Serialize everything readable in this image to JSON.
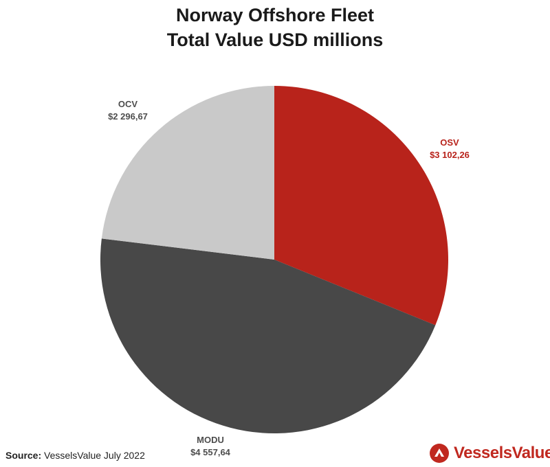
{
  "title_line1": "Norway Offshore Fleet",
  "title_line2": "Total Value USD millions",
  "source_label": "Source:",
  "source_text": "VesselsValue July 2022",
  "brand_name": "VesselsValue",
  "colors": {
    "OSV": "#b8231b",
    "MODU": "#484848",
    "OCV": "#c9c9c9",
    "label_dark": "#4d4d4d",
    "brand": "#c0281f"
  },
  "icons": {
    "brand": "vesselsvalue-logo-icon"
  },
  "chart_data": {
    "type": "pie",
    "title": "Norway Offshore Fleet Total Value USD millions",
    "start_angle_deg": 0,
    "direction": "clockwise",
    "slices": [
      {
        "name": "OSV",
        "value": 3102.26,
        "value_label": "$3 102,26"
      },
      {
        "name": "MODU",
        "value": 4557.64,
        "value_label": "$4 557,64"
      },
      {
        "name": "OCV",
        "value": 2296.67,
        "value_label": "$2 296,67"
      }
    ]
  }
}
